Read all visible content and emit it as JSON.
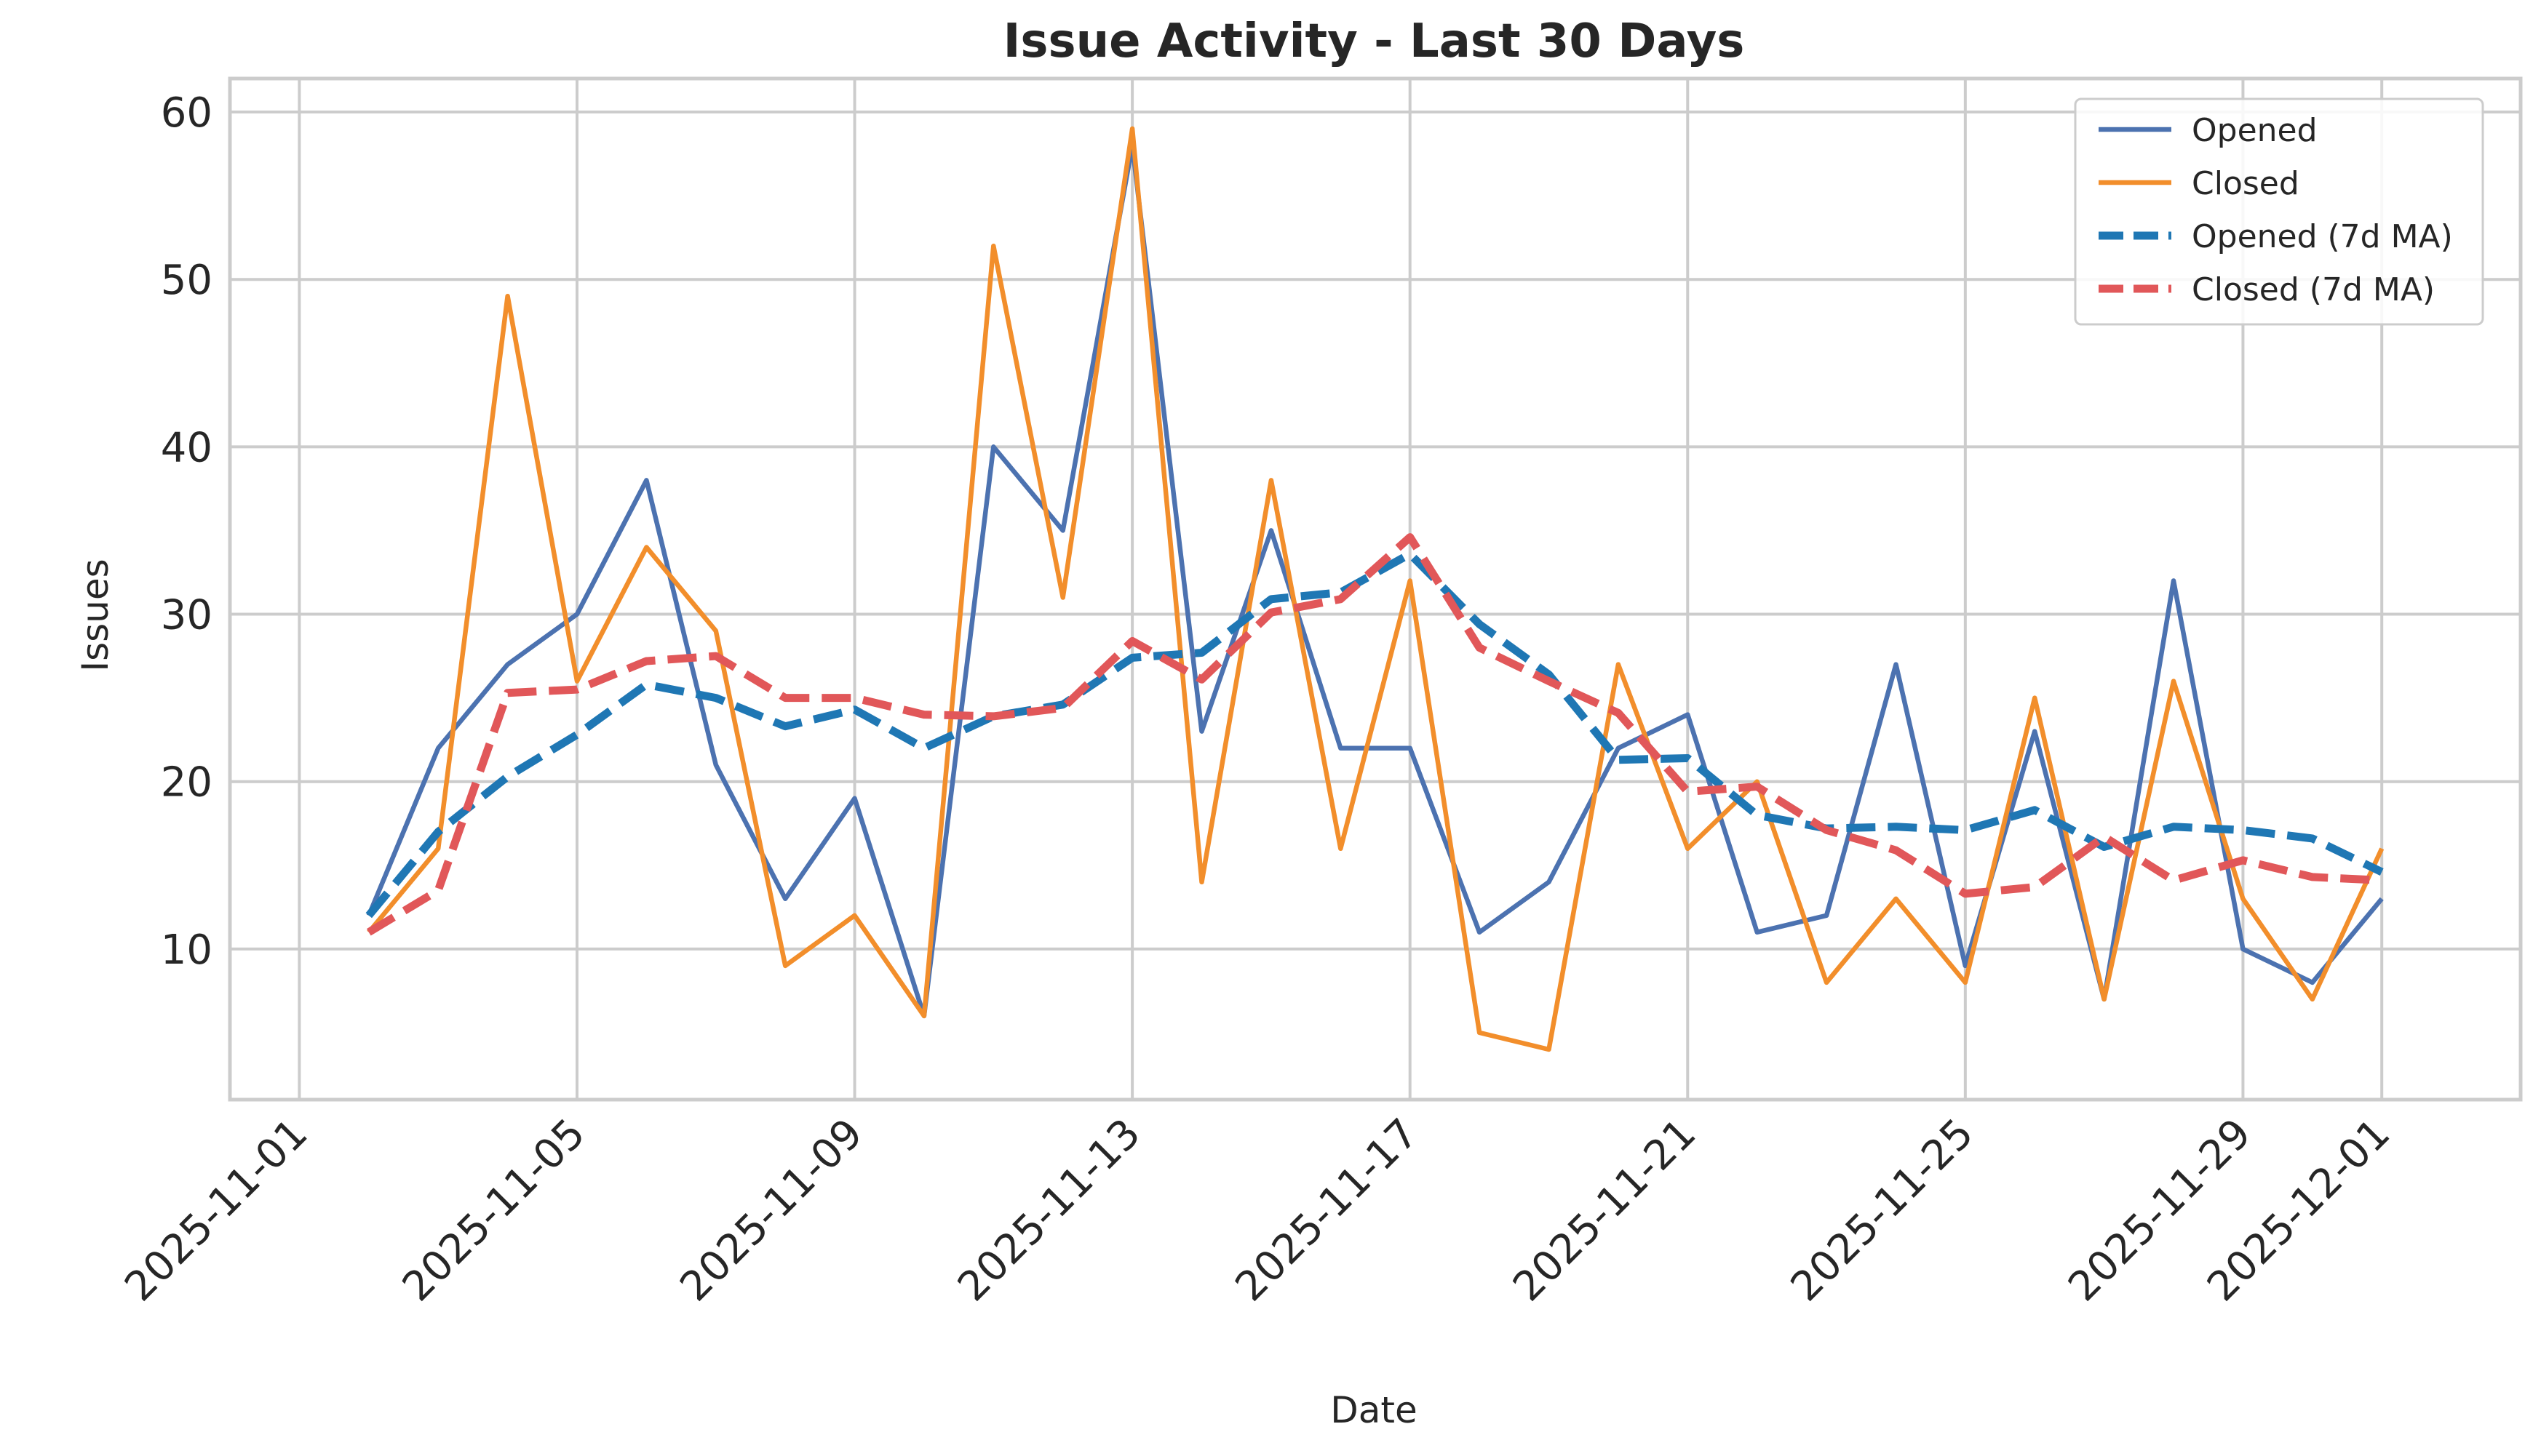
{
  "chart_data": {
    "type": "line",
    "title": "Issue Activity - Last 30 Days",
    "xlabel": "Date",
    "ylabel": "Issues",
    "x_ticks": [
      "2025-11-01",
      "2025-11-05",
      "2025-11-09",
      "2025-11-13",
      "2025-11-17",
      "2025-11-21",
      "2025-11-25",
      "2025-11-29",
      "2025-12-01"
    ],
    "y_ticks": [
      10,
      20,
      30,
      40,
      50,
      60
    ],
    "xlim": [
      "2025-10-31",
      "2025-12-03"
    ],
    "ylim": [
      1,
      62
    ],
    "grid": true,
    "legend_position": "top-right",
    "x": [
      "2025-11-02",
      "2025-11-03",
      "2025-11-04",
      "2025-11-05",
      "2025-11-06",
      "2025-11-07",
      "2025-11-08",
      "2025-11-09",
      "2025-11-10",
      "2025-11-11",
      "2025-11-12",
      "2025-11-13",
      "2025-11-14",
      "2025-11-15",
      "2025-11-16",
      "2025-11-17",
      "2025-11-18",
      "2025-11-19",
      "2025-11-20",
      "2025-11-21",
      "2025-11-22",
      "2025-11-23",
      "2025-11-24",
      "2025-11-25",
      "2025-11-26",
      "2025-11-27",
      "2025-11-28",
      "2025-11-29",
      "2025-11-30",
      "2025-12-01"
    ],
    "series": [
      {
        "name": "Opened",
        "color": "#4c72b0",
        "style": "solid",
        "values": [
          12,
          22,
          27,
          30,
          38,
          21,
          13,
          19,
          6,
          40,
          35,
          58,
          23,
          35,
          22,
          22,
          11,
          14,
          22,
          24,
          11,
          12,
          27,
          9,
          23,
          7,
          32,
          10,
          8,
          13
        ]
      },
      {
        "name": "Closed",
        "color": "#f28e2b",
        "style": "solid",
        "values": [
          11,
          16,
          49,
          26,
          34,
          29,
          9,
          12,
          6,
          52,
          31,
          59,
          14,
          38,
          16,
          32,
          5,
          4,
          27,
          16,
          20,
          8,
          13,
          8,
          25,
          7,
          26,
          13,
          7,
          16
        ]
      },
      {
        "name": "Opened (7d MA)",
        "color": "#1f77b4",
        "style": "dashed",
        "values": [
          12,
          17,
          20.3,
          22.8,
          25.8,
          25,
          23.3,
          24.3,
          22,
          23.9,
          24.6,
          27.4,
          27.7,
          30.9,
          31.3,
          33.6,
          29.4,
          26.4,
          21.3,
          21.4,
          18,
          17.2,
          17.3,
          17.1,
          18.3,
          16.1,
          17.3,
          17.1,
          16.6,
          14.6
        ]
      },
      {
        "name": "Closed (7d MA)",
        "color": "#e15759",
        "style": "dashed",
        "values": [
          11,
          13.5,
          25.3,
          25.5,
          27.2,
          27.5,
          25,
          25,
          24,
          23.9,
          24.4,
          28.4,
          26.1,
          30.1,
          30.9,
          34.6,
          28,
          26,
          24.1,
          19.4,
          19.7,
          17.1,
          15.9,
          13.3,
          13.7,
          16.7,
          14.1,
          15.3,
          14.3,
          14.1
        ]
      }
    ]
  }
}
